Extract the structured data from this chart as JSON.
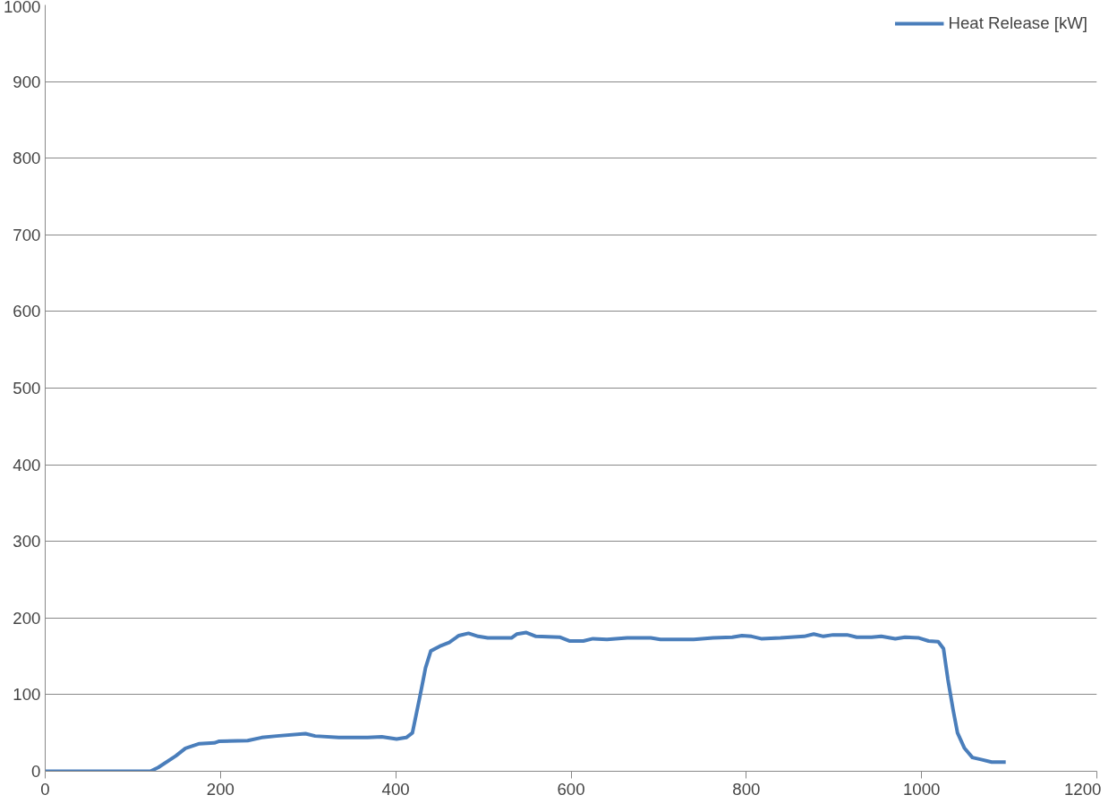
{
  "chart_data": {
    "type": "line",
    "x": [
      0,
      60,
      120,
      129,
      149,
      160,
      176,
      193,
      198,
      231,
      247,
      264,
      297,
      308,
      335,
      368,
      384,
      401,
      412,
      419,
      428,
      434,
      440,
      450,
      461,
      472,
      483,
      494,
      505,
      532,
      538,
      549,
      560,
      587,
      598,
      614,
      625,
      641,
      664,
      691,
      702,
      729,
      740,
      762,
      784,
      795,
      806,
      817,
      839,
      866,
      877,
      888,
      899,
      915,
      926,
      943,
      954,
      970,
      981,
      997,
      1008,
      1019,
      1025,
      1030,
      1036,
      1041,
      1049,
      1058,
      1069,
      1080,
      1096
    ],
    "series": [
      {
        "name": "Heat Release [kW]",
        "color": "#4a7ebb",
        "values": [
          0,
          0,
          0,
          5,
          20,
          30,
          36,
          37,
          39,
          40,
          44,
          46,
          49,
          46,
          44,
          44,
          45,
          42,
          44,
          50,
          100,
          135,
          157,
          163,
          168,
          177,
          180,
          176,
          174,
          174,
          179,
          181,
          176,
          175,
          170,
          170,
          173,
          172,
          174,
          174,
          172,
          172,
          172,
          174,
          175,
          177,
          176,
          173,
          174,
          176,
          179,
          176,
          178,
          178,
          175,
          175,
          176,
          173,
          175,
          174,
          170,
          169,
          160,
          120,
          80,
          50,
          30,
          18,
          15,
          12,
          12
        ]
      }
    ],
    "xlim": [
      0,
      1200
    ],
    "xticks": [
      0,
      200,
      400,
      600,
      800,
      1000,
      1200
    ],
    "ylim": [
      0,
      1000
    ],
    "yticks": [
      0,
      100,
      200,
      300,
      400,
      500,
      600,
      700,
      800,
      900,
      1000
    ],
    "grid": "y",
    "legend": "top right",
    "marker": "none",
    "line_style": "solid"
  }
}
